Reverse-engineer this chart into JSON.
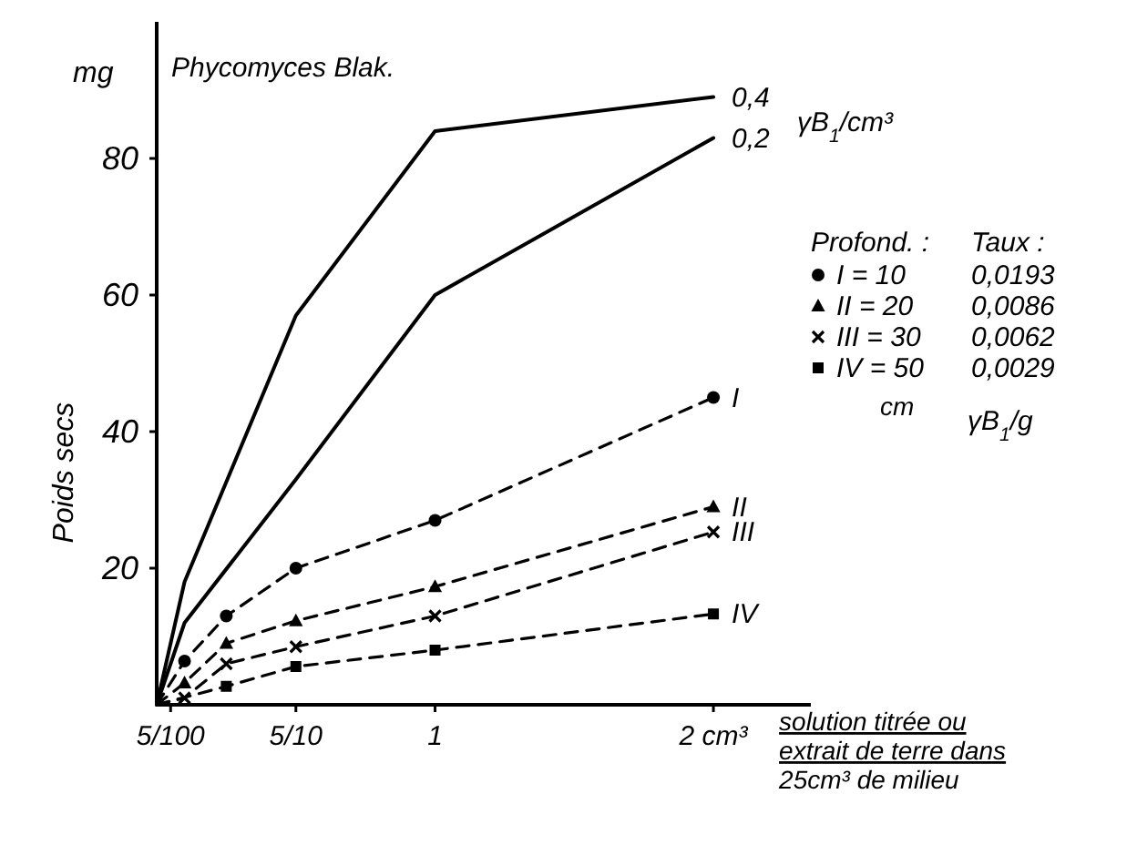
{
  "chart_data": {
    "type": "line",
    "title": "Phycomyces Blak.",
    "ylabel": "Poids secs",
    "xlabel": "solution titrée ou\nextrait de terre dans\n25cm³ de milieu",
    "xlim": [
      0,
      2.35
    ],
    "xticks": [
      {
        "value": 0.05,
        "label": "5/100"
      },
      {
        "value": 0.5,
        "label": "5/10"
      },
      1,
      {
        "value": 2,
        "label": "2 cm³"
      }
    ],
    "ylim": [
      0,
      100
    ],
    "yticks": [
      20,
      40,
      60,
      80
    ],
    "grid": false,
    "legend": "right",
    "series": [
      {
        "name": "0,4",
        "color": "#000000",
        "line_style": "solid",
        "marker": "none",
        "x": [
          0,
          0.1,
          0.5,
          1,
          2
        ],
        "values": [
          0,
          18,
          57,
          84,
          89
        ]
      },
      {
        "name": "0,2",
        "color": "#000000",
        "line_style": "solid",
        "marker": "none",
        "x": [
          0,
          0.1,
          0.5,
          1,
          2
        ],
        "values": [
          0,
          12,
          33,
          60,
          83
        ]
      },
      {
        "name": "I",
        "color": "#000000",
        "line_style": "dashed",
        "marker": "circle",
        "x": [
          0,
          0.1,
          0.25,
          0.5,
          1,
          2
        ],
        "values": [
          0,
          6.4,
          13,
          20,
          27,
          45
        ]
      },
      {
        "name": "II",
        "color": "#000000",
        "line_style": "dashed",
        "marker": "triangle",
        "x": [
          0,
          0.1,
          0.25,
          0.5,
          1,
          2
        ],
        "values": [
          0,
          3.2,
          9,
          12.3,
          17.3,
          29
        ]
      },
      {
        "name": "III",
        "color": "#000000",
        "line_style": "dashed",
        "marker": "cross",
        "x": [
          0,
          0.1,
          0.25,
          0.5,
          1,
          2
        ],
        "values": [
          0,
          1,
          6,
          8.5,
          13,
          25.3
        ]
      },
      {
        "name": "IV",
        "color": "#000000",
        "line_style": "dashed",
        "marker": "square",
        "x": [
          0,
          0.25,
          0.5,
          1,
          2
        ],
        "values": [
          0,
          2.7,
          5.6,
          8,
          13.3
        ]
      }
    ],
    "annotations": [
      "mg",
      "γB$_{1}$/cm³",
      "Profond. :",
      "Taux :",
      "I = 10",
      "0,0193",
      "II = 20",
      "0,0086",
      "III = 30",
      "0,0062",
      "IV = 50",
      "0,0029",
      "cm",
      "γB$_{1}$/g"
    ]
  }
}
